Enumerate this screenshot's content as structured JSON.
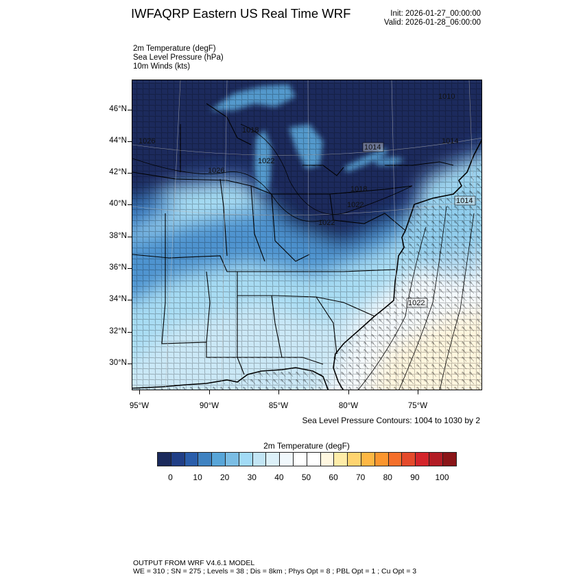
{
  "header": {
    "title": "IWFAQRP Eastern US Real Time WRF",
    "init": "Init: 2026-01-27_00:00:00",
    "valid": "Valid: 2026-01-28_06:00:00"
  },
  "fields": [
    "2m Temperature   (degF)",
    "Sea Level Pressure   (hPa)",
    "10m Winds   (kts)"
  ],
  "map": {
    "lat_labels": [
      "46°N",
      "44°N",
      "42°N",
      "40°N",
      "38°N",
      "36°N",
      "34°N",
      "32°N",
      "30°N"
    ],
    "lon_labels": [
      "95°W",
      "90°W",
      "85°W",
      "80°W",
      "75°W"
    ],
    "contour_labels": [
      "1026",
      "1018",
      "1022",
      "1026",
      "1014",
      "1010",
      "1014",
      "1018",
      "1022",
      "1022",
      "1014",
      "1022"
    ],
    "contours_note": "Sea Level Pressure Contours: 1004 to 1030 by 2"
  },
  "colorbar": {
    "title": "2m Temperature  (degF)",
    "labels": [
      "0",
      "10",
      "20",
      "30",
      "40",
      "50",
      "60",
      "70",
      "80",
      "90",
      "100"
    ],
    "colors": [
      "#1b2a5c",
      "#213f86",
      "#2a5eab",
      "#3f82c1",
      "#58a5d8",
      "#7bbde4",
      "#a2dbf6",
      "#c2e5f4",
      "#dcf0f8",
      "#f1f8fc",
      "#ffffff",
      "#ffffff",
      "#fff7e0",
      "#feeca8",
      "#fed470",
      "#feb744",
      "#fb962f",
      "#f46f2b",
      "#e44a2b",
      "#d4252b",
      "#b21c25",
      "#8a1518"
    ]
  },
  "footer": {
    "line1": "OUTPUT FROM WRF V4.6.1 MODEL",
    "line2": "WE = 310 ; SN = 275 ; Levels = 38 ; Dis = 8km ; Phys Opt = 8 ; PBL Opt = 1 ; Cu Opt = 3"
  }
}
